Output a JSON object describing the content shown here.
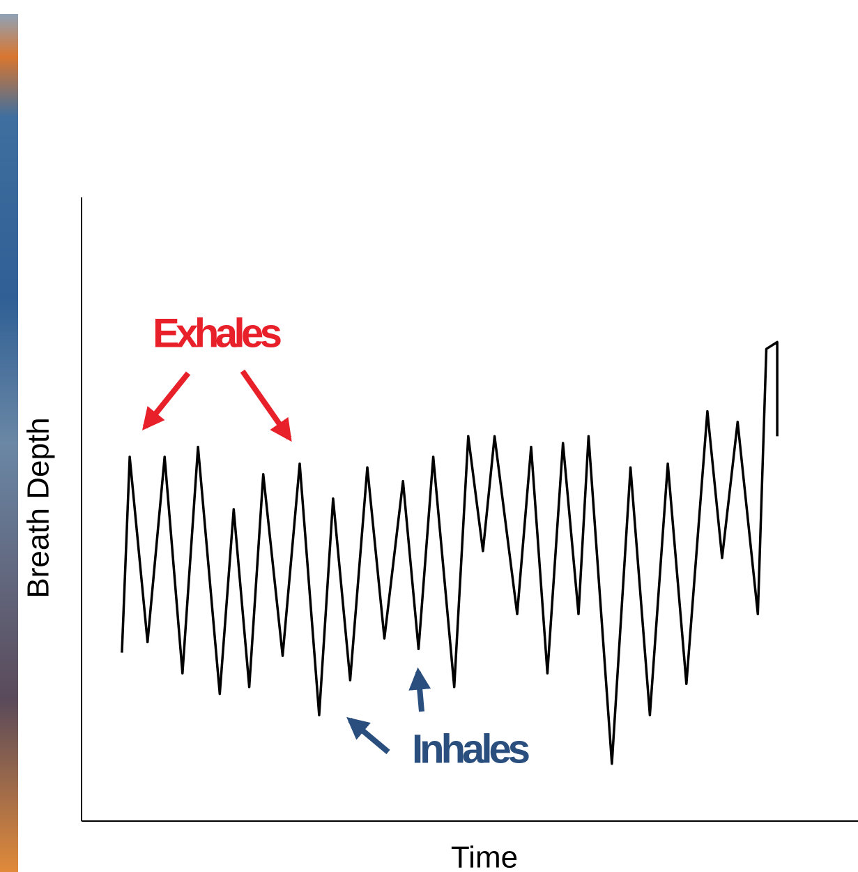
{
  "chart_data": {
    "type": "line",
    "x_label": "Time",
    "y_label": "Breath Depth",
    "annotations": [
      {
        "text": "Exhales",
        "color": "#e8202a"
      },
      {
        "text": "Inhales",
        "color": "#2a4f7f"
      }
    ],
    "x": [
      5.2,
      6.2,
      8.5,
      10.7,
      13,
      15,
      17.8,
      19.6,
      21.6,
      23.4,
      25.9,
      28.1,
      30.6,
      32.4,
      34.6,
      36.8,
      39,
      41.4,
      43.4,
      45.3,
      48,
      49.8,
      51.7,
      53.2,
      56.1,
      57.9,
      60,
      62,
      64,
      65.3,
      68.3,
      70.7,
      73.2,
      75.5,
      77.9,
      80.6,
      82.5,
      84.5,
      87.1,
      88.2,
      89.6,
      89.6
    ],
    "values": [
      27,
      58.4,
      28.7,
      58.4,
      23.7,
      60,
      20.4,
      50,
      21.5,
      55.6,
      26.5,
      57.3,
      17,
      51.7,
      22.6,
      56.7,
      29.3,
      54.5,
      27.6,
      58.4,
      21.5,
      61.7,
      43.3,
      61.7,
      33.2,
      60,
      23.7,
      60.6,
      33.2,
      61.7,
      9.2,
      56.7,
      17,
      57.3,
      22,
      65.7,
      42.2,
      64,
      33.2,
      75.7,
      76.8,
      61.7
    ],
    "color": "#000000",
    "xlim": [
      0,
      100
    ],
    "ylim": [
      0,
      100
    ]
  }
}
